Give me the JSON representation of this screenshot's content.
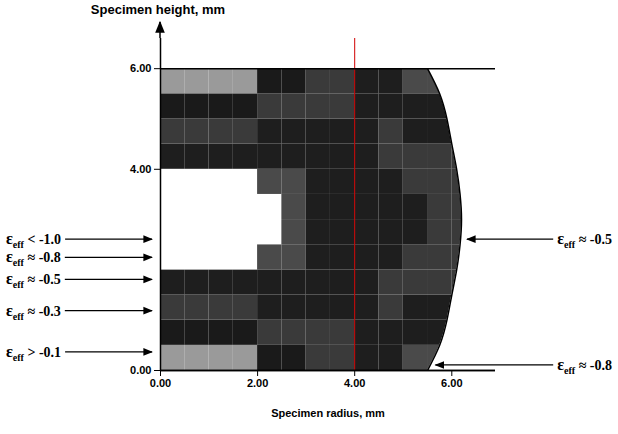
{
  "chart_data": {
    "type": "heatmap",
    "x_label": "Specimen radius, mm",
    "y_label": "Specimen height, mm",
    "xlim": [
      0,
      6.9
    ],
    "ylim": [
      0,
      6.6
    ],
    "xticks": [
      {
        "value": 0,
        "label": "0.00"
      },
      {
        "value": 2,
        "label": "2.00"
      },
      {
        "value": 4,
        "label": "4.00"
      },
      {
        "value": 6,
        "label": "6.00"
      }
    ],
    "yticks": [
      {
        "value": 0,
        "label": "0.00"
      },
      {
        "value": 4,
        "label": "4.00"
      },
      {
        "value": 6,
        "label": "6.00"
      }
    ],
    "grid": false,
    "cells": {
      "radius": [
        0.25,
        0.75,
        1.25,
        1.75,
        2.25,
        2.75,
        3.25,
        3.75,
        4.25,
        4.75,
        5.25,
        5.75,
        6.25
      ],
      "height": [
        0.25,
        0.75,
        1.25,
        1.75,
        2.25,
        2.75,
        3.25,
        3.75,
        4.25,
        4.75,
        5.25,
        5.75
      ],
      "strain": [
        [
          -0.05,
          -0.05,
          -0.07,
          -0.1,
          -0.15,
          -0.22,
          -0.32,
          -0.45,
          -0.6,
          -0.72,
          -0.82,
          -0.85,
          -0.85
        ],
        [
          -0.2,
          -0.22,
          -0.25,
          -0.3,
          -0.35,
          -0.4,
          -0.45,
          -0.5,
          -0.55,
          -0.62,
          -0.7,
          -0.75,
          -0.75
        ],
        [
          -0.45,
          -0.45,
          -0.47,
          -0.5,
          -0.52,
          -0.55,
          -0.55,
          -0.55,
          -0.52,
          -0.5,
          -0.52,
          -0.55,
          -0.55
        ],
        [
          -0.75,
          -0.75,
          -0.75,
          -0.75,
          -0.72,
          -0.7,
          -0.68,
          -0.62,
          -0.55,
          -0.5,
          -0.48,
          -0.47,
          -0.47
        ],
        [
          -1.05,
          -1.05,
          -1.05,
          -1.02,
          -0.95,
          -0.85,
          -0.75,
          -0.65,
          -0.57,
          -0.52,
          -0.5,
          -0.48,
          -0.48
        ],
        [
          -1.2,
          -1.2,
          -1.18,
          -1.15,
          -1.1,
          -0.95,
          -0.8,
          -0.68,
          -0.6,
          -0.55,
          -0.52,
          -0.5,
          -0.5
        ],
        [
          -1.2,
          -1.2,
          -1.18,
          -1.15,
          -1.1,
          -0.95,
          -0.8,
          -0.68,
          -0.6,
          -0.55,
          -0.52,
          -0.5,
          -0.5
        ],
        [
          -1.05,
          -1.05,
          -1.05,
          -1.02,
          -0.95,
          -0.85,
          -0.75,
          -0.65,
          -0.57,
          -0.52,
          -0.5,
          -0.48,
          -0.48
        ],
        [
          -0.75,
          -0.75,
          -0.75,
          -0.75,
          -0.72,
          -0.7,
          -0.68,
          -0.62,
          -0.55,
          -0.5,
          -0.48,
          -0.47,
          -0.47
        ],
        [
          -0.45,
          -0.45,
          -0.47,
          -0.5,
          -0.52,
          -0.55,
          -0.55,
          -0.55,
          -0.52,
          -0.5,
          -0.52,
          -0.55,
          -0.55
        ],
        [
          -0.2,
          -0.22,
          -0.25,
          -0.3,
          -0.35,
          -0.4,
          -0.45,
          -0.5,
          -0.55,
          -0.62,
          -0.7,
          -0.75,
          -0.75
        ],
        [
          -0.05,
          -0.05,
          -0.07,
          -0.1,
          -0.15,
          -0.22,
          -0.32,
          -0.45,
          -0.6,
          -0.72,
          -0.82,
          -0.85,
          -0.85
        ]
      ],
      "color_thresholds": [
        -1.0,
        -0.8,
        -0.5,
        -0.3,
        -0.1
      ],
      "colors": [
        "#ffffff",
        "#4a4a4a",
        "#1e1e1e",
        "#3a3a3a",
        "#1a1a1a",
        "#9a9a9a"
      ]
    },
    "boundary": {
      "height": [
        0,
        0.5,
        1,
        1.5,
        2,
        2.5,
        3,
        3.5,
        4,
        4.5,
        5,
        5.5,
        6
      ],
      "radius": [
        5.5,
        5.75,
        5.9,
        6.0,
        6.1,
        6.17,
        6.2,
        6.17,
        6.1,
        6.0,
        5.9,
        5.75,
        5.5
      ]
    },
    "vline": {
      "x": 4,
      "color": "#d00000"
    },
    "annotations": [
      {
        "symbol": "ε",
        "subscript": "eff",
        "text": "< -1.0",
        "side": "left",
        "x": 0,
        "y": 2.6
      },
      {
        "symbol": "ε",
        "subscript": "eff",
        "text": "≈ -0.8",
        "side": "left",
        "x": 0,
        "y": 2.24
      },
      {
        "symbol": "ε",
        "subscript": "eff",
        "text": "≈ -0.5",
        "side": "left",
        "x": 0,
        "y": 1.8
      },
      {
        "symbol": "ε",
        "subscript": "eff",
        "text": "≈ -0.3",
        "side": "left",
        "x": 0,
        "y": 1.18
      },
      {
        "symbol": "ε",
        "subscript": "eff",
        "text": "> -0.1",
        "side": "left",
        "x": 0,
        "y": 0.36
      },
      {
        "symbol": "ε",
        "subscript": "eff",
        "text": "≈ -0.5",
        "side": "right",
        "x": 6.2,
        "y": 2.6
      },
      {
        "symbol": "ε",
        "subscript": "eff",
        "text": "≈ -0.8",
        "side": "right",
        "x": 5.55,
        "y": 0.1
      }
    ]
  }
}
